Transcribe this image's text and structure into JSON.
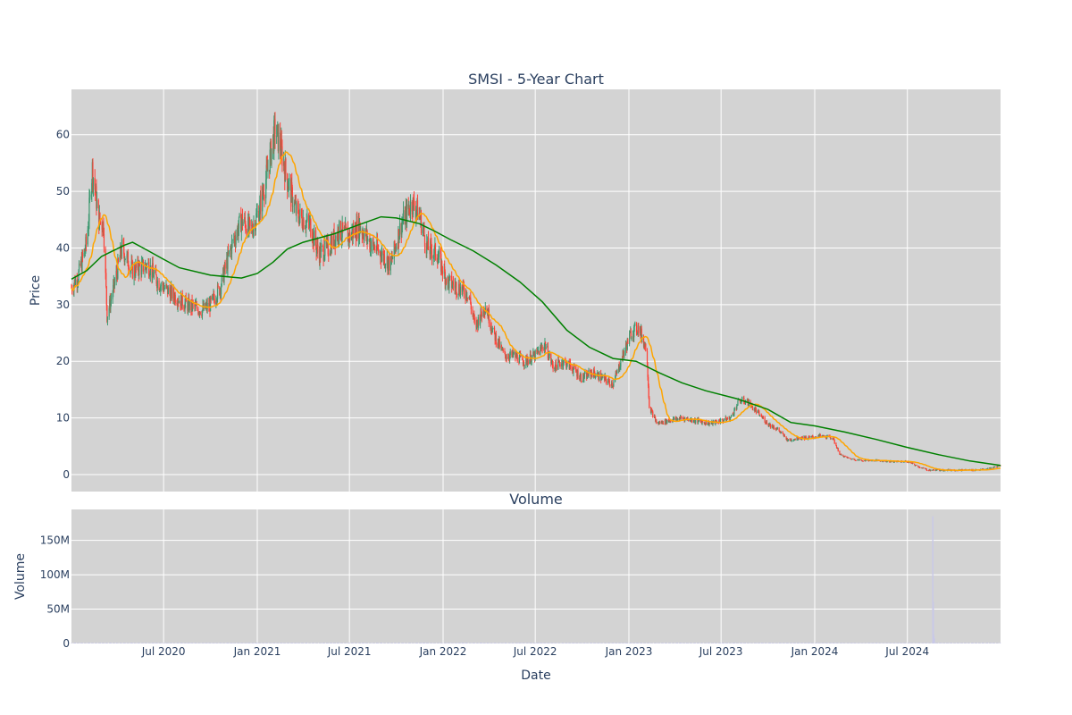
{
  "chart_data": [
    {
      "type": "candlestick",
      "title": "SMSI - 5-Year Chart",
      "ylabel": "Price",
      "xlabel": "",
      "x_range": [
        "2020-01-02",
        "2024-12-31"
      ],
      "ylim": [
        -3,
        68
      ],
      "y_ticks": [
        0,
        10,
        20,
        30,
        40,
        50,
        60
      ],
      "x_ticks": [
        "2020-07-01",
        "2021-01-01",
        "2021-07-01",
        "2022-01-01",
        "2022-07-01",
        "2023-01-01",
        "2023-07-01",
        "2024-01-01",
        "2024-07-01"
      ],
      "grid": true,
      "legend": "none",
      "colors": {
        "up": "#3d9970",
        "down": "#ff4136",
        "ma_short": "#ffa500",
        "ma_long": "#008000",
        "plot_bg": "#d3d3d3"
      },
      "price_keypoints": [
        [
          "2020-01-02",
          33
        ],
        [
          "2020-01-15",
          35
        ],
        [
          "2020-02-01",
          41
        ],
        [
          "2020-02-12",
          54
        ],
        [
          "2020-02-25",
          45
        ],
        [
          "2020-03-05",
          44
        ],
        [
          "2020-03-12",
          28
        ],
        [
          "2020-03-25",
          33
        ],
        [
          "2020-04-10",
          40
        ],
        [
          "2020-05-01",
          36
        ],
        [
          "2020-06-01",
          37
        ],
        [
          "2020-06-20",
          34
        ],
        [
          "2020-07-15",
          32
        ],
        [
          "2020-08-15",
          30
        ],
        [
          "2020-09-15",
          29
        ],
        [
          "2020-10-01",
          30
        ],
        [
          "2020-10-20",
          33
        ],
        [
          "2020-11-10",
          40
        ],
        [
          "2020-12-01",
          45
        ],
        [
          "2020-12-20",
          43
        ],
        [
          "2021-01-05",
          47
        ],
        [
          "2021-01-20",
          53
        ],
        [
          "2021-02-05",
          61
        ],
        [
          "2021-02-15",
          58
        ],
        [
          "2021-03-01",
          52
        ],
        [
          "2021-03-20",
          46
        ],
        [
          "2021-04-15",
          44
        ],
        [
          "2021-05-01",
          39
        ],
        [
          "2021-05-20",
          40
        ],
        [
          "2021-06-10",
          43
        ],
        [
          "2021-07-01",
          42
        ],
        [
          "2021-07-20",
          44
        ],
        [
          "2021-08-10",
          41
        ],
        [
          "2021-09-01",
          39
        ],
        [
          "2021-09-20",
          37
        ],
        [
          "2021-10-10",
          44
        ],
        [
          "2021-11-01",
          48
        ],
        [
          "2021-11-15",
          46
        ],
        [
          "2021-12-01",
          40
        ],
        [
          "2021-12-20",
          39
        ],
        [
          "2022-01-10",
          34
        ],
        [
          "2022-02-01",
          33
        ],
        [
          "2022-02-20",
          32
        ],
        [
          "2022-03-05",
          26
        ],
        [
          "2022-03-25",
          30
        ],
        [
          "2022-04-10",
          25
        ],
        [
          "2022-05-01",
          21
        ],
        [
          "2022-05-20",
          21
        ],
        [
          "2022-06-10",
          20
        ],
        [
          "2022-07-01",
          21
        ],
        [
          "2022-07-20",
          23
        ],
        [
          "2022-08-05",
          19
        ],
        [
          "2022-08-25",
          20
        ],
        [
          "2022-09-10",
          19
        ],
        [
          "2022-10-01",
          17
        ],
        [
          "2022-10-20",
          18
        ],
        [
          "2022-11-10",
          17
        ],
        [
          "2022-12-01",
          16
        ],
        [
          "2022-12-20",
          21
        ],
        [
          "2023-01-05",
          25
        ],
        [
          "2023-01-20",
          26
        ],
        [
          "2023-02-05",
          22
        ],
        [
          "2023-02-10",
          12
        ],
        [
          "2023-02-25",
          9
        ],
        [
          "2023-03-20",
          9.5
        ],
        [
          "2023-04-15",
          10
        ],
        [
          "2023-05-15",
          9.5
        ],
        [
          "2023-06-10",
          9
        ],
        [
          "2023-07-01",
          9.5
        ],
        [
          "2023-07-20",
          10
        ],
        [
          "2023-08-05",
          13
        ],
        [
          "2023-08-20",
          13
        ],
        [
          "2023-09-10",
          11
        ],
        [
          "2023-10-01",
          9
        ],
        [
          "2023-10-20",
          8
        ],
        [
          "2023-11-10",
          6
        ],
        [
          "2023-12-01",
          6.5
        ],
        [
          "2023-12-20",
          6.5
        ],
        [
          "2024-01-10",
          6.8
        ],
        [
          "2024-02-05",
          6.5
        ],
        [
          "2024-02-20",
          3.5
        ],
        [
          "2024-03-10",
          2.8
        ],
        [
          "2024-04-01",
          2.5
        ],
        [
          "2024-05-01",
          2.5
        ],
        [
          "2024-06-01",
          2.3
        ],
        [
          "2024-07-01",
          2.3
        ],
        [
          "2024-07-20",
          1.5
        ],
        [
          "2024-08-10",
          0.8
        ],
        [
          "2024-09-01",
          0.8
        ],
        [
          "2024-10-01",
          0.8
        ],
        [
          "2024-11-01",
          0.8
        ],
        [
          "2024-12-01",
          0.9
        ],
        [
          "2024-12-31",
          1.6
        ]
      ],
      "ma_long_keypoints": [
        [
          "2020-01-02",
          34.5
        ],
        [
          "2020-02-01",
          36
        ],
        [
          "2020-03-01",
          38.5
        ],
        [
          "2020-04-15",
          40.5
        ],
        [
          "2020-05-01",
          41
        ],
        [
          "2020-06-01",
          39.5
        ],
        [
          "2020-07-01",
          38
        ],
        [
          "2020-08-01",
          36.5
        ],
        [
          "2020-10-01",
          35.2
        ],
        [
          "2020-12-01",
          34.7
        ],
        [
          "2021-01-01",
          35.5
        ],
        [
          "2021-02-01",
          37.5
        ],
        [
          "2021-03-01",
          39.8
        ],
        [
          "2021-04-01",
          41
        ],
        [
          "2021-06-01",
          42.5
        ],
        [
          "2021-08-01",
          44.5
        ],
        [
          "2021-09-01",
          45.5
        ],
        [
          "2021-10-01",
          45.3
        ],
        [
          "2021-11-15",
          44.3
        ],
        [
          "2021-12-15",
          43
        ],
        [
          "2022-01-15",
          41.5
        ],
        [
          "2022-03-01",
          39.5
        ],
        [
          "2022-04-15",
          37
        ],
        [
          "2022-06-01",
          34
        ],
        [
          "2022-07-15",
          30.5
        ],
        [
          "2022-09-01",
          25.5
        ],
        [
          "2022-10-15",
          22.5
        ],
        [
          "2022-12-01",
          20.5
        ],
        [
          "2023-01-15",
          20
        ],
        [
          "2023-03-01",
          18
        ],
        [
          "2023-04-15",
          16.2
        ],
        [
          "2023-06-01",
          14.8
        ],
        [
          "2023-08-01",
          13.4
        ],
        [
          "2023-10-01",
          11.5
        ],
        [
          "2023-11-15",
          9.2
        ],
        [
          "2024-01-01",
          8.6
        ],
        [
          "2024-03-01",
          7.5
        ],
        [
          "2024-05-01",
          6.2
        ],
        [
          "2024-07-01",
          4.8
        ],
        [
          "2024-09-01",
          3.5
        ],
        [
          "2024-11-01",
          2.4
        ],
        [
          "2024-12-31",
          1.6
        ]
      ],
      "ma_short_window_days": 30
    },
    {
      "type": "bar",
      "title": "Volume",
      "ylabel": "Volume",
      "xlabel": "Date",
      "ylim": [
        0,
        195000000
      ],
      "y_ticks": [
        0,
        50000000,
        100000000,
        150000000
      ],
      "y_tick_labels": [
        "0",
        "50M",
        "100M",
        "150M"
      ],
      "x_tick_labels": [
        "Jul 2020",
        "Jan 2021",
        "Jul 2021",
        "Jan 2022",
        "Jul 2022",
        "Jan 2023",
        "Jul 2023",
        "Jan 2024",
        "Jul 2024"
      ],
      "grid": true,
      "color": "#c8c8e8",
      "baseline_volume": 800000,
      "spikes": [
        {
          "date": "2024-08-20",
          "value": 185000000
        },
        {
          "date": "2024-08-21",
          "value": 60000000
        },
        {
          "date": "2024-08-22",
          "value": 12000000
        },
        {
          "date": "2024-08-23",
          "value": 8000000
        }
      ]
    }
  ]
}
